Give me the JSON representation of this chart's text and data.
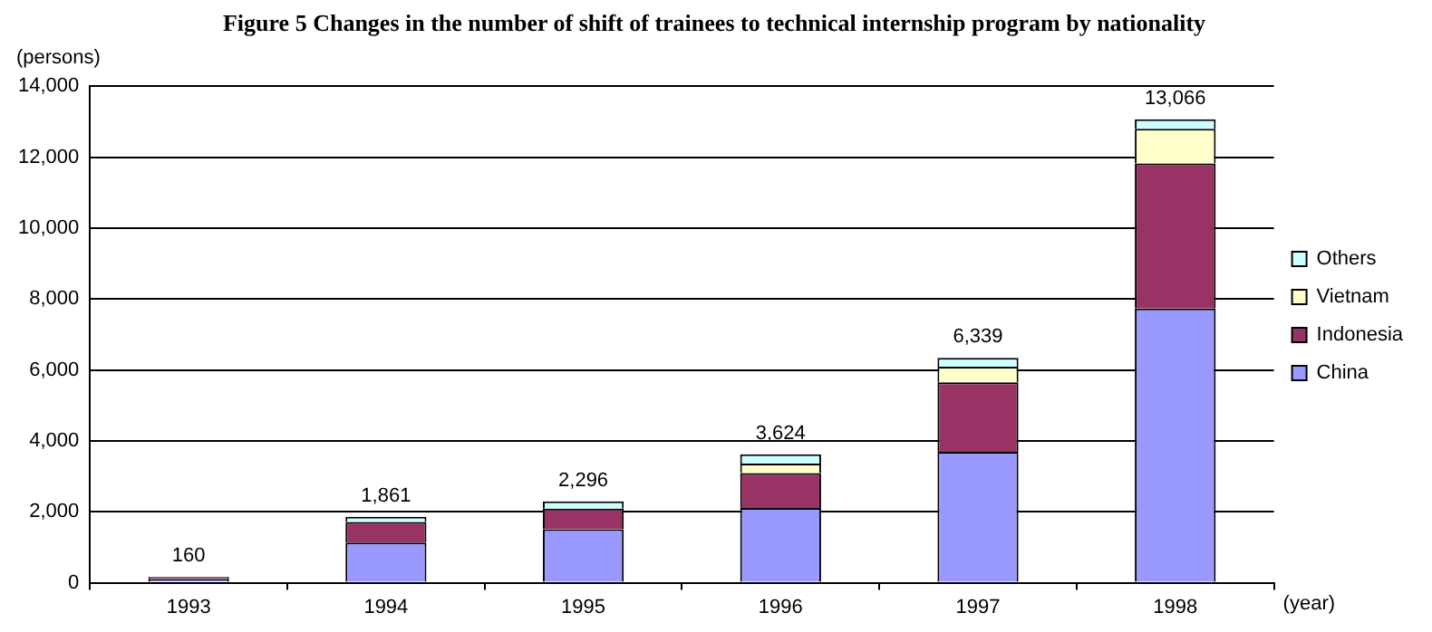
{
  "chart_data": {
    "type": "bar",
    "title": "Figure 5 Changes in the number of shift of trainees to technical internship program by nationality",
    "xlabel": "(year)",
    "ylabel": "(persons)",
    "categories": [
      "1993",
      "1994",
      "1995",
      "1996",
      "1997",
      "1998"
    ],
    "stacked": true,
    "series": [
      {
        "name": "China",
        "color": "#9999ff",
        "values": [
          100,
          1130,
          1510,
          2110,
          3690,
          7730
        ]
      },
      {
        "name": "Indonesia",
        "color": "#993366",
        "values": [
          60,
          580,
          580,
          980,
          1960,
          4090
        ]
      },
      {
        "name": "Vietnam",
        "color": "#ffffcc",
        "values": [
          null,
          null,
          null,
          270,
          440,
          980
        ]
      },
      {
        "name": "Others",
        "color": "#ccffff",
        "values": [
          null,
          151,
          206,
          264,
          249,
          266
        ]
      }
    ],
    "totals": [
      "160",
      "1,861",
      "2,296",
      "3,624",
      "6,339",
      "13,066"
    ],
    "ylim": [
      0,
      14000
    ],
    "yticks": [
      {
        "value": 0,
        "label": "0"
      },
      {
        "value": 2000,
        "label": "2,000"
      },
      {
        "value": 4000,
        "label": "4,000"
      },
      {
        "value": 6000,
        "label": "6,000"
      },
      {
        "value": 8000,
        "label": "8,000"
      },
      {
        "value": 10000,
        "label": "10,000"
      },
      {
        "value": 12000,
        "label": "12,000"
      },
      {
        "value": 14000,
        "label": "14,000"
      }
    ],
    "grid": "y",
    "legend": "right"
  }
}
